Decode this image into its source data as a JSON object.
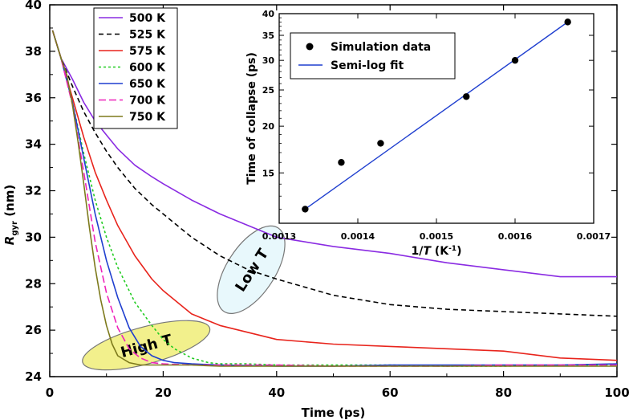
{
  "chart_data": [
    {
      "type": "line",
      "xlabel": "Time (ps)",
      "ylabel_main": "R",
      "ylabel_sub": "gyr",
      "ylabel_unit": " (nm)",
      "xlim": [
        0,
        100
      ],
      "ylim": [
        24,
        40
      ],
      "xticks": [
        "0",
        "20",
        "40",
        "60",
        "80",
        "100"
      ],
      "yticks": [
        "24",
        "26",
        "28",
        "30",
        "32",
        "34",
        "36",
        "38",
        "40"
      ],
      "legend_position": "top-left",
      "series": [
        {
          "name": "500 K",
          "color": "#8a2be2",
          "dash": "solid",
          "x": [
            0.5,
            2,
            4,
            6,
            8,
            10,
            12,
            15,
            18,
            20,
            25,
            30,
            35,
            40,
            50,
            60,
            70,
            80,
            90,
            100
          ],
          "y": [
            38.9,
            37.7,
            36.8,
            35.8,
            35.0,
            34.4,
            33.8,
            33.1,
            32.6,
            32.3,
            31.6,
            31.0,
            30.5,
            30.0,
            29.6,
            29.3,
            28.9,
            28.6,
            28.3,
            28.3
          ]
        },
        {
          "name": "525 K",
          "color": "#000000",
          "dash": "6,4",
          "x": [
            0.5,
            2,
            4,
            6,
            8,
            10,
            12,
            15,
            18,
            20,
            25,
            30,
            35,
            40,
            50,
            60,
            70,
            80,
            90,
            100
          ],
          "y": [
            38.9,
            37.7,
            36.5,
            35.4,
            34.5,
            33.7,
            33.0,
            32.1,
            31.4,
            31.0,
            30.0,
            29.2,
            28.6,
            28.2,
            27.5,
            27.1,
            26.9,
            26.8,
            26.7,
            26.6
          ]
        },
        {
          "name": "575 K",
          "color": "#e8241c",
          "dash": "solid",
          "x": [
            0.5,
            2,
            4,
            6,
            8,
            10,
            12,
            15,
            18,
            20,
            25,
            30,
            40,
            50,
            60,
            70,
            80,
            90,
            100
          ],
          "y": [
            38.9,
            37.7,
            36.0,
            34.3,
            32.8,
            31.6,
            30.5,
            29.2,
            28.2,
            27.7,
            26.7,
            26.2,
            25.6,
            25.4,
            25.3,
            25.2,
            25.1,
            24.8,
            24.7
          ]
        },
        {
          "name": "600 K",
          "color": "#22cc22",
          "dash": "3,3",
          "x": [
            0.5,
            2,
            4,
            6,
            8,
            10,
            12,
            15,
            18,
            20,
            22,
            25,
            28,
            30,
            35,
            40,
            50,
            60,
            70,
            80,
            90,
            100
          ],
          "y": [
            38.9,
            37.7,
            35.8,
            33.6,
            31.6,
            30.0,
            28.7,
            27.2,
            26.2,
            25.6,
            25.2,
            24.8,
            24.6,
            24.55,
            24.55,
            24.5,
            24.5,
            24.5,
            24.45,
            24.45,
            24.5,
            24.5
          ]
        },
        {
          "name": "650 K",
          "color": "#1f3fcf",
          "dash": "solid",
          "x": [
            0.5,
            2,
            4,
            6,
            8,
            10,
            12,
            14,
            16,
            18,
            20,
            22,
            25,
            30,
            40,
            50,
            60,
            70,
            80,
            90,
            100
          ],
          "y": [
            38.9,
            37.7,
            35.8,
            33.4,
            31.0,
            29.0,
            27.4,
            26.1,
            25.3,
            24.9,
            24.7,
            24.6,
            24.55,
            24.5,
            24.45,
            24.45,
            24.5,
            24.5,
            24.5,
            24.5,
            24.55
          ]
        },
        {
          "name": "700 K",
          "color": "#ee22bb",
          "dash": "9,4",
          "x": [
            0.5,
            2,
            4,
            6,
            8,
            10,
            12,
            14,
            16,
            18,
            20,
            25,
            30,
            40,
            50,
            60,
            70,
            80,
            90,
            100
          ],
          "y": [
            38.9,
            37.7,
            35.7,
            32.8,
            29.8,
            27.6,
            26.1,
            25.2,
            24.8,
            24.6,
            24.55,
            24.5,
            24.5,
            24.5,
            24.45,
            24.45,
            24.45,
            24.5,
            24.5,
            24.5
          ]
        },
        {
          "name": "750 K",
          "color": "#7d7a1c",
          "dash": "solid",
          "x": [
            0.5,
            2,
            3,
            4,
            5,
            6,
            7,
            8,
            9,
            10,
            11,
            12,
            14,
            16,
            18,
            20,
            25,
            30,
            40,
            50,
            60,
            70,
            80,
            90,
            100
          ],
          "y": [
            38.9,
            37.7,
            37.0,
            35.7,
            34.1,
            32.3,
            30.4,
            28.7,
            27.3,
            26.2,
            25.4,
            24.9,
            24.6,
            24.5,
            24.5,
            24.5,
            24.5,
            24.45,
            24.45,
            24.45,
            24.45,
            24.45,
            24.45,
            24.45,
            24.45
          ]
        }
      ],
      "annotations": [
        {
          "text": "Low T",
          "x": 35.5,
          "y": 28.6,
          "angle": -57,
          "fill": "#e8f8fc"
        },
        {
          "text": "High T",
          "x": 17,
          "y": 25.35,
          "angle": -15,
          "fill": "#f2f08c"
        }
      ]
    },
    {
      "type": "scatter",
      "inset": true,
      "xlabel_pre": "1/",
      "xlabel_italic": "T",
      "xlabel_post": " (K",
      "xlabel_sup": "-1",
      "xlabel_end": ")",
      "ylabel": "Time of collapse (ps)",
      "xlim": [
        0.0013,
        0.0017
      ],
      "ylim": [
        11,
        40
      ],
      "yscale": "log",
      "xticks": [
        0.0013,
        0.0014,
        0.0015,
        0.0016,
        0.0017
      ],
      "xtick_labels": [
        "0.0013",
        "0.0014",
        "0.0015",
        "0.0016",
        "0.0017"
      ],
      "yticks": [
        15,
        20,
        25,
        30,
        35,
        40
      ],
      "ytick_labels": [
        "15",
        "20",
        "25",
        "30",
        "35",
        "40"
      ],
      "legend_position": "top-left",
      "series": [
        {
          "name": "Simulation data",
          "kind": "points",
          "color": "#000000",
          "x": [
            0.001333,
            0.001379,
            0.001429,
            0.001538,
            0.0016,
            0.001667
          ],
          "y": [
            12.0,
            16.0,
            18.0,
            24.0,
            30.0,
            38.0
          ]
        },
        {
          "name": "Semi-log fit",
          "kind": "line",
          "color": "#1f3fcf",
          "x": [
            0.001333,
            0.001667
          ],
          "y": [
            12.0,
            38.0
          ]
        }
      ]
    }
  ]
}
